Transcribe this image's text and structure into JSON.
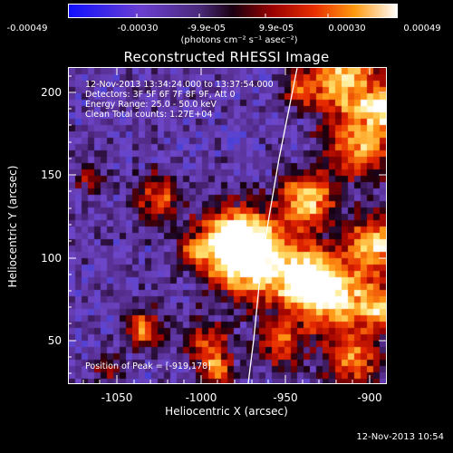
{
  "colorbar": {
    "tick_labels": [
      "-0.00049",
      "-0.00030",
      "-9.9e-05",
      "9.9e-05",
      "0.00030",
      "0.00049"
    ],
    "units": "(photons cm⁻² s⁻¹ asec⁻²)",
    "colors": [
      "#0000ff",
      "#7f3fbf",
      "#5a2f8f",
      "#2a0033",
      "#cc0000",
      "#ff6600",
      "#ffcc33",
      "#ffffff"
    ]
  },
  "title": "Reconstructed RHESSI Image",
  "info": {
    "time_range": "12-Nov-2013 13:34:24.000 to 13:37:54.000",
    "detectors": "Detectors: 3F 5F 6F 7F 8F 9F, Att 0",
    "energy_range": "Energy Range: 25.0 - 50.0 keV",
    "clean": "Clean     Total counts: 1.27E+04",
    "peak": "Position of Peak = [-919,178]"
  },
  "x_axis": {
    "label": "Heliocentric X (arcsec)",
    "ticks": [
      "-1050",
      "-1000",
      "-950",
      "-900"
    ],
    "range": [
      -1077,
      -888
    ]
  },
  "y_axis": {
    "label": "Heliocentric Y (arcsec)",
    "ticks": [
      "50",
      "100",
      "150",
      "200"
    ],
    "range": [
      24,
      215
    ]
  },
  "timestamp": "12-Nov-2013 10:54"
}
